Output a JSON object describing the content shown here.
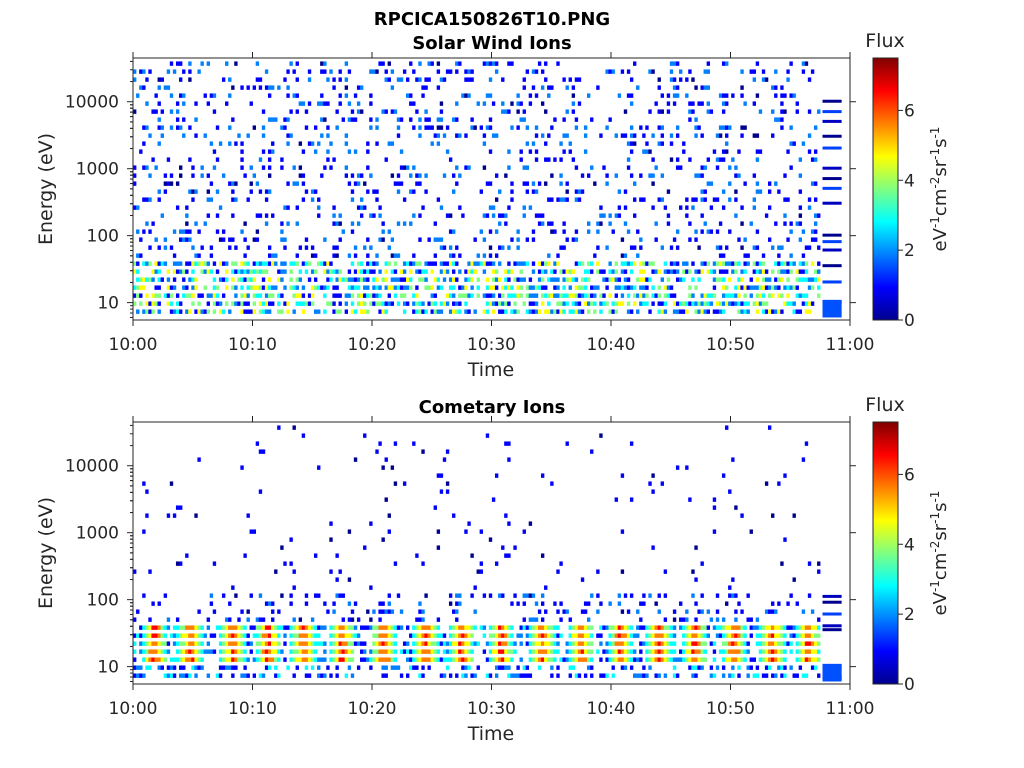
{
  "figure_title": "RPCICA150826T10.PNG",
  "colors": {
    "colormap": [
      "#00008f",
      "#0000ff",
      "#0080ff",
      "#00ffff",
      "#80ff80",
      "#ffff00",
      "#ff8000",
      "#ff0000",
      "#800000"
    ],
    "axis": "#262626",
    "background": "#ffffff"
  },
  "chart_data": [
    {
      "type": "heatmap",
      "title": "Solar Wind Ions",
      "xlabel": "Time",
      "ylabel": "Energy (eV)",
      "x_ticks": [
        "10:00",
        "10:10",
        "10:20",
        "10:30",
        "10:40",
        "10:50",
        "11:00"
      ],
      "x_range_minutes": [
        0,
        60
      ],
      "y_scale": "log",
      "y_ticks": [
        "10",
        "100",
        "1000",
        "10000"
      ],
      "ylim": [
        5.5,
        45000
      ],
      "colorbar": {
        "label": "Flux",
        "units": "eV-1cm-2sr-1s-1",
        "ticks": [
          "0",
          "2",
          "4",
          "6"
        ],
        "range": [
          0,
          7.5
        ]
      },
      "data_end_minute": 57.5,
      "description_pattern": "sparse low-flux (0-2) speckle across 10 eV - 40 keV; moderate flux (2-5) band near 20-40 eV"
    },
    {
      "type": "heatmap",
      "title": "Cometary Ions",
      "xlabel": "Time",
      "ylabel": "Energy (eV)",
      "x_ticks": [
        "10:00",
        "10:10",
        "10:20",
        "10:30",
        "10:40",
        "10:50",
        "11:00"
      ],
      "x_range_minutes": [
        0,
        60
      ],
      "y_scale": "log",
      "y_ticks": [
        "10",
        "100",
        "1000",
        "10000"
      ],
      "ylim": [
        5.5,
        45000
      ],
      "colorbar": {
        "label": "Flux",
        "units": "eV-1cm-2sr-1s-1",
        "ticks": [
          "0",
          "2",
          "4",
          "6"
        ],
        "range": [
          0,
          7.5
        ]
      },
      "data_end_minute": 57.5,
      "burst_centers_minutes": [
        1.8,
        4.8,
        8.3,
        11.3,
        14.3,
        17.5,
        21.0,
        24.5,
        27.5,
        30.8,
        34.2,
        37.5,
        40.8,
        44.0,
        47.0,
        50.3,
        53.5,
        56.5
      ],
      "description_pattern": "periodic high-flux (5-7) bursts at ~15-40 eV every ~3 min; sparse low flux above 100 eV"
    }
  ]
}
